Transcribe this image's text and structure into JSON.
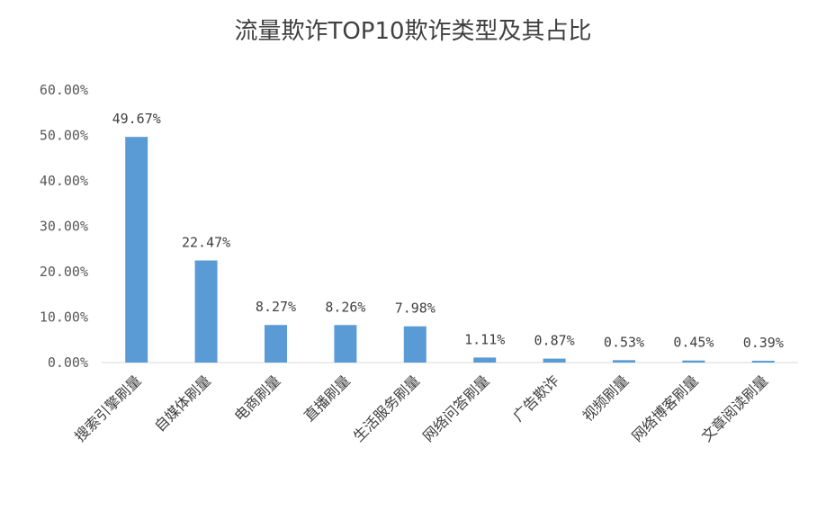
{
  "chart_data": {
    "type": "bar",
    "title": "流量欺诈TOP10欺诈类型及其占比",
    "categories": [
      "搜索引擎刷量",
      "自媒体刷量",
      "电商刷量",
      "直播刷量",
      "生活服务刷量",
      "网络问答刷量",
      "广告欺诈",
      "视频刷量",
      "网络博客刷量",
      "文章阅读刷量"
    ],
    "values": [
      49.67,
      22.47,
      8.27,
      8.26,
      7.98,
      1.11,
      0.87,
      0.53,
      0.45,
      0.39
    ],
    "data_labels": [
      "49.67%",
      "22.47%",
      "8.27%",
      "8.26%",
      "7.98%",
      "1.11%",
      "0.87%",
      "0.53%",
      "0.45%",
      "0.39%"
    ],
    "yticks": [
      "0.00%",
      "10.00%",
      "20.00%",
      "30.00%",
      "40.00%",
      "50.00%",
      "60.00%"
    ],
    "ylim": [
      0,
      60
    ],
    "bar_color": "#5B9BD5",
    "grid": false,
    "legend": "none"
  }
}
